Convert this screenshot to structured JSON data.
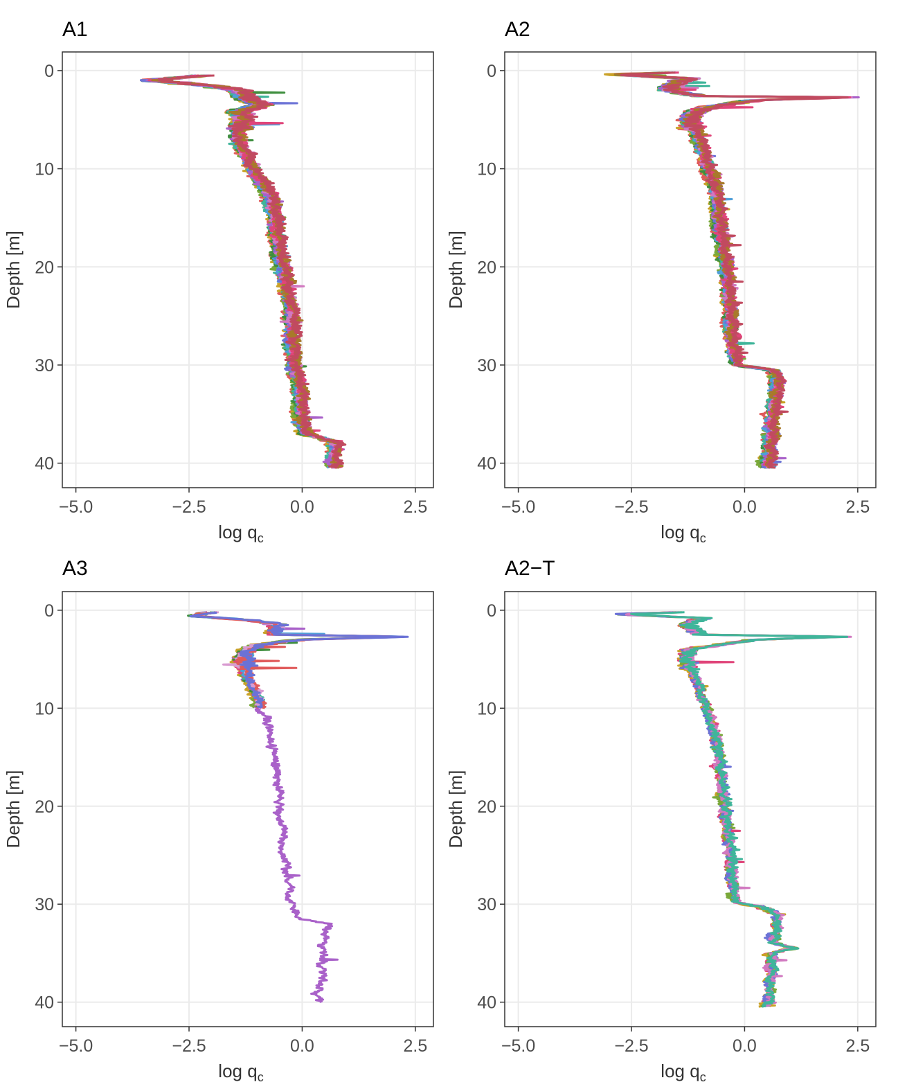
{
  "figure": {
    "panels": [
      "A1",
      "A2",
      "A3",
      "A2−T"
    ]
  },
  "chart_data": [
    {
      "type": "line",
      "title": "A1",
      "xlabel": "log q",
      "xlabel_sub": "c",
      "ylabel": "Depth [m]",
      "xlim": [
        -5.3,
        2.9
      ],
      "ylim": [
        -1.9,
        42.5
      ],
      "y_reversed": true,
      "grid": true,
      "xticks": [
        -5.0,
        -2.5,
        0.0,
        2.5
      ],
      "xtick_labels": [
        "−5.0",
        "−2.5",
        "0.0",
        "2.5"
      ],
      "yticks": [
        0,
        10,
        20,
        30,
        40
      ],
      "ytick_labels": [
        "0",
        "10",
        "20",
        "30",
        "40"
      ],
      "series_colors": [
        "#e05a5a",
        "#c9a227",
        "#7aa83a",
        "#3e8e3e",
        "#3fb59a",
        "#4f9fd9",
        "#6b72d6",
        "#a961c9",
        "#d179c0",
        "#e0457a",
        "#a87a2a",
        "#c14a60"
      ],
      "series": [
        {
          "profile": [
            [
              0.5,
              -2.2
            ],
            [
              1.0,
              -3.4
            ],
            [
              1.5,
              -2.1
            ],
            [
              2.0,
              -1.4
            ],
            [
              3.0,
              -1.2
            ],
            [
              3.5,
              -0.9
            ],
            [
              4.2,
              -1.4
            ],
            [
              5.0,
              -1.3
            ],
            [
              6.0,
              -1.4
            ],
            [
              7.0,
              -1.45
            ],
            [
              8.0,
              -1.3
            ],
            [
              9.0,
              -1.2
            ],
            [
              10.0,
              -1.1
            ],
            [
              11.0,
              -0.95
            ],
            [
              12.0,
              -0.8
            ],
            [
              13.0,
              -0.7
            ],
            [
              14.0,
              -0.65
            ],
            [
              15.0,
              -0.6
            ],
            [
              16.0,
              -0.6
            ],
            [
              17.0,
              -0.55
            ],
            [
              18.0,
              -0.5
            ],
            [
              19.0,
              -0.5
            ],
            [
              20.0,
              -0.45
            ],
            [
              21.0,
              -0.4
            ],
            [
              22.0,
              -0.35
            ],
            [
              23.0,
              -0.3
            ],
            [
              24.0,
              -0.25
            ],
            [
              25.0,
              -0.25
            ],
            [
              26.0,
              -0.2
            ],
            [
              27.0,
              -0.22
            ],
            [
              28.0,
              -0.22
            ],
            [
              29.0,
              -0.2
            ],
            [
              30.0,
              -0.2
            ],
            [
              31.0,
              -0.12
            ],
            [
              32.0,
              -0.05
            ],
            [
              33.0,
              -0.05
            ],
            [
              34.0,
              -0.05
            ],
            [
              35.0,
              -0.05
            ],
            [
              36.0,
              -0.02
            ],
            [
              37.0,
              0.05
            ],
            [
              37.8,
              0.7
            ],
            [
              38.5,
              0.75
            ],
            [
              39.0,
              0.72
            ],
            [
              39.5,
              0.7
            ],
            [
              40.0,
              0.72
            ],
            [
              40.5,
              0.7
            ]
          ],
          "noise": 0.2
        }
      ]
    },
    {
      "type": "line",
      "title": "A2",
      "xlabel": "log q",
      "xlabel_sub": "c",
      "ylabel": "Depth [m]",
      "xlim": [
        -5.3,
        2.9
      ],
      "ylim": [
        -1.9,
        42.5
      ],
      "y_reversed": true,
      "grid": true,
      "xticks": [
        -5.0,
        -2.5,
        0.0,
        2.5
      ],
      "xtick_labels": [
        "−5.0",
        "−2.5",
        "0.0",
        "2.5"
      ],
      "yticks": [
        0,
        10,
        20,
        30,
        40
      ],
      "ytick_labels": [
        "0",
        "10",
        "20",
        "30",
        "40"
      ],
      "series_colors": [
        "#e05a5a",
        "#c9a227",
        "#7aa83a",
        "#3e8e3e",
        "#3fb59a",
        "#4f9fd9",
        "#6b72d6",
        "#a961c9",
        "#d179c0",
        "#e0457a",
        "#a87a2a",
        "#c14a60"
      ],
      "series": [
        {
          "profile": [
            [
              0.2,
              -1.6
            ],
            [
              0.4,
              -2.9
            ],
            [
              0.8,
              -1.2
            ],
            [
              1.5,
              -1.6
            ],
            [
              2.0,
              -1.7
            ],
            [
              2.6,
              -1.0
            ],
            [
              2.7,
              2.4
            ],
            [
              3.0,
              0.3
            ],
            [
              3.5,
              -0.5
            ],
            [
              4.0,
              -1.0
            ],
            [
              5.0,
              -1.2
            ],
            [
              6.0,
              -1.1
            ],
            [
              7.0,
              -1.0
            ],
            [
              8.0,
              -0.95
            ],
            [
              9.0,
              -0.85
            ],
            [
              10.0,
              -0.8
            ],
            [
              11.0,
              -0.7
            ],
            [
              12.0,
              -0.65
            ],
            [
              13.0,
              -0.6
            ],
            [
              14.0,
              -0.6
            ],
            [
              15.0,
              -0.55
            ],
            [
              16.0,
              -0.55
            ],
            [
              17.0,
              -0.5
            ],
            [
              18.0,
              -0.45
            ],
            [
              19.0,
              -0.42
            ],
            [
              20.0,
              -0.4
            ],
            [
              21.0,
              -0.38
            ],
            [
              22.0,
              -0.35
            ],
            [
              23.0,
              -0.35
            ],
            [
              24.0,
              -0.32
            ],
            [
              25.0,
              -0.3
            ],
            [
              26.0,
              -0.3
            ],
            [
              27.0,
              -0.28
            ],
            [
              28.0,
              -0.25
            ],
            [
              29.0,
              -0.2
            ],
            [
              30.0,
              -0.15
            ],
            [
              30.5,
              0.6
            ],
            [
              31.0,
              0.75
            ],
            [
              32.0,
              0.7
            ],
            [
              33.0,
              0.7
            ],
            [
              34.0,
              0.65
            ],
            [
              35.0,
              0.6
            ],
            [
              36.0,
              0.6
            ],
            [
              37.0,
              0.58
            ],
            [
              38.0,
              0.55
            ],
            [
              39.0,
              0.55
            ],
            [
              40.0,
              0.52
            ],
            [
              40.5,
              0.5
            ]
          ],
          "noise": 0.17
        }
      ]
    },
    {
      "type": "line",
      "title": "A3",
      "xlabel": "log q",
      "xlabel_sub": "c",
      "ylabel": "Depth [m]",
      "xlim": [
        -5.3,
        2.9
      ],
      "ylim": [
        -1.9,
        42.5
      ],
      "y_reversed": true,
      "grid": true,
      "xticks": [
        -5.0,
        -2.5,
        0.0,
        2.5
      ],
      "xtick_labels": [
        "−5.0",
        "−2.5",
        "0.0",
        "2.5"
      ],
      "yticks": [
        0,
        10,
        20,
        30,
        40
      ],
      "ytick_labels": [
        "0",
        "10",
        "20",
        "30",
        "40"
      ],
      "series_colors": [
        "#a961c9",
        "#c9a227",
        "#7aa83a",
        "#3e8e3e",
        "#e0457a",
        "#3fb59a",
        "#4f9fd9",
        "#d99bd1",
        "#e05a5a",
        "#6b72d6"
      ],
      "series": [
        {
          "profile": [
            [
              0.2,
              -2.0
            ],
            [
              0.6,
              -2.4
            ],
            [
              1.0,
              -1.2
            ],
            [
              1.5,
              -0.5
            ],
            [
              2.0,
              -0.6
            ],
            [
              2.5,
              -0.6
            ],
            [
              2.7,
              2.3
            ],
            [
              3.0,
              0.0
            ],
            [
              3.5,
              -0.9
            ],
            [
              4.0,
              -1.2
            ],
            [
              5.0,
              -1.3
            ],
            [
              6.0,
              -1.25
            ],
            [
              7.0,
              -1.2
            ],
            [
              8.0,
              -1.1
            ],
            [
              9.0,
              -1.0
            ],
            [
              10.0,
              -0.95
            ],
            [
              11.0,
              -0.7
            ],
            [
              12.0,
              -0.65
            ],
            [
              13.0,
              -0.6
            ],
            [
              14.0,
              -0.6
            ],
            [
              15.0,
              -0.55
            ],
            [
              16.0,
              -0.55
            ],
            [
              17.0,
              -0.5
            ],
            [
              18.0,
              -0.45
            ],
            [
              19.0,
              -0.45
            ],
            [
              20.0,
              -0.42
            ],
            [
              21.0,
              -0.4
            ],
            [
              22.0,
              -0.38
            ],
            [
              23.0,
              -0.38
            ],
            [
              24.0,
              -0.36
            ],
            [
              25.0,
              -0.35
            ],
            [
              26.0,
              -0.3
            ],
            [
              27.0,
              -0.28
            ],
            [
              28.0,
              -0.25
            ],
            [
              29.0,
              -0.2
            ],
            [
              30.0,
              -0.15
            ],
            [
              31.0,
              -0.1
            ],
            [
              31.5,
              0.0
            ],
            [
              32.0,
              0.65
            ],
            [
              33.0,
              0.6
            ],
            [
              34.0,
              0.55
            ],
            [
              35.0,
              0.55
            ],
            [
              36.0,
              0.5
            ],
            [
              37.0,
              0.48
            ],
            [
              38.0,
              0.45
            ],
            [
              39.0,
              0.45
            ],
            [
              40.0,
              0.5
            ]
          ],
          "noise": 0.14
        },
        {
          "profile": [
            [
              3.0,
              -1.2
            ],
            [
              9.0,
              -0.9
            ]
          ],
          "noise": 0.0
        }
      ]
    },
    {
      "type": "line",
      "title": "A2−T",
      "xlabel": "log q",
      "xlabel_sub": "c",
      "ylabel": "Depth [m]",
      "xlim": [
        -5.3,
        2.9
      ],
      "ylim": [
        -1.9,
        42.5
      ],
      "y_reversed": true,
      "grid": true,
      "xticks": [
        -5.0,
        -2.5,
        0.0,
        2.5
      ],
      "xtick_labels": [
        "−5.0",
        "−2.5",
        "0.0",
        "2.5"
      ],
      "yticks": [
        0,
        10,
        20,
        30,
        40
      ],
      "ytick_labels": [
        "0",
        "10",
        "20",
        "30",
        "40"
      ],
      "series_colors": [
        "#e0457a",
        "#c9a227",
        "#7aa83a",
        "#6b72d6",
        "#d179c0",
        "#3fb59a"
      ],
      "series": [
        {
          "profile": [
            [
              0.2,
              -1.5
            ],
            [
              0.4,
              -2.8
            ],
            [
              0.8,
              -0.9
            ],
            [
              1.5,
              -1.3
            ],
            [
              2.0,
              -1.1
            ],
            [
              2.5,
              -1.0
            ],
            [
              2.7,
              2.4
            ],
            [
              3.0,
              0.3
            ],
            [
              3.5,
              -0.5
            ],
            [
              4.0,
              -1.2
            ],
            [
              5.0,
              -1.3
            ],
            [
              6.0,
              -1.2
            ],
            [
              7.0,
              -1.1
            ],
            [
              8.0,
              -1.0
            ],
            [
              9.0,
              -0.9
            ],
            [
              10.0,
              -0.85
            ],
            [
              11.0,
              -0.75
            ],
            [
              12.0,
              -0.7
            ],
            [
              13.0,
              -0.65
            ],
            [
              14.0,
              -0.6
            ],
            [
              15.0,
              -0.55
            ],
            [
              16.0,
              -0.55
            ],
            [
              17.0,
              -0.5
            ],
            [
              18.0,
              -0.48
            ],
            [
              19.0,
              -0.45
            ],
            [
              20.0,
              -0.42
            ],
            [
              21.0,
              -0.4
            ],
            [
              22.0,
              -0.38
            ],
            [
              23.0,
              -0.36
            ],
            [
              24.0,
              -0.34
            ],
            [
              25.0,
              -0.32
            ],
            [
              26.0,
              -0.3
            ],
            [
              27.0,
              -0.28
            ],
            [
              28.0,
              -0.25
            ],
            [
              29.0,
              -0.22
            ],
            [
              29.8,
              -0.2
            ],
            [
              30.3,
              0.4
            ],
            [
              31.0,
              0.7
            ],
            [
              32.0,
              0.7
            ],
            [
              33.0,
              0.68
            ],
            [
              34.0,
              0.65
            ],
            [
              34.5,
              1.1
            ],
            [
              35.0,
              0.6
            ],
            [
              36.0,
              0.6
            ],
            [
              37.0,
              0.58
            ],
            [
              38.0,
              0.56
            ],
            [
              39.0,
              0.55
            ],
            [
              40.0,
              0.5
            ],
            [
              40.5,
              0.45
            ]
          ],
          "noise": 0.14
        }
      ]
    }
  ]
}
